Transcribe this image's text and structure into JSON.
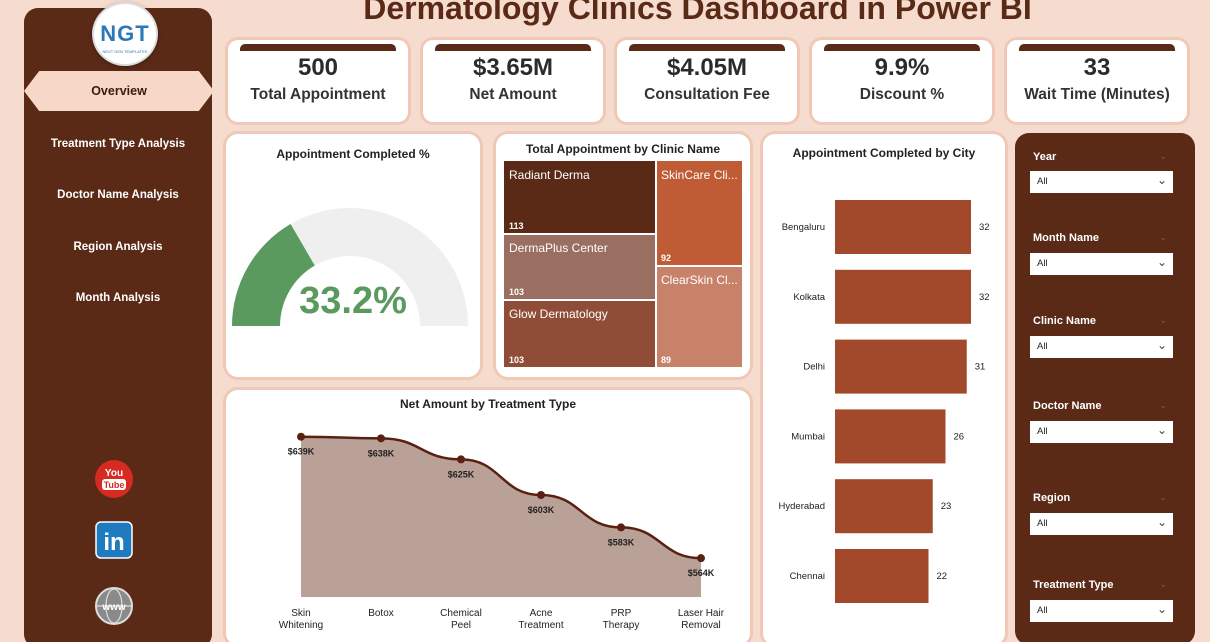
{
  "header": {
    "title": "Dermatology Clinics Dashboard in Power BI"
  },
  "logo": {
    "text": "NGT",
    "subtext": "NEXT GEN TEMPLATES"
  },
  "sidebar": {
    "active": "Overview",
    "items": [
      "Treatment Type Analysis",
      "Doctor Name Analysis",
      "Region Analysis",
      "Month Analysis"
    ],
    "social": {
      "youtube_top": "You",
      "youtube_bottom": "Tube",
      "linkedin": "in",
      "web": "www"
    }
  },
  "kpis": [
    {
      "value": "500",
      "label": "Total Appointment"
    },
    {
      "value": "$3.65M",
      "label": "Net Amount"
    },
    {
      "value": "$4.05M",
      "label": "Consultation Fee"
    },
    {
      "value": "9.9%",
      "label": "Discount %"
    },
    {
      "value": "33",
      "label": "Wait Time (Minutes)"
    }
  ],
  "gauge": {
    "title": "Appointment Completed %",
    "value_label": "33.2%",
    "value": 33.2,
    "max": 100,
    "color": "#5a9a5e"
  },
  "treemap": {
    "title": "Total Appointment by Clinic Name",
    "items": [
      {
        "name": "Radiant Derma",
        "value": 113,
        "label": "113"
      },
      {
        "name": "SkinCare Cli...",
        "value": 92,
        "label": "92"
      },
      {
        "name": "DermaPlus Center",
        "value": 103,
        "label": "103"
      },
      {
        "name": "ClearSkin Cl...",
        "value": 89,
        "label": "89"
      },
      {
        "name": "Glow Dermatology",
        "value": 103,
        "label": "103"
      }
    ]
  },
  "chart_data": [
    {
      "type": "area",
      "title": "Net Amount by Treatment Type",
      "categories": [
        "Skin Whitening",
        "Botox",
        "Chemical Peel",
        "Acne Treatment",
        "PRP Therapy",
        "Laser Hair Removal"
      ],
      "values": [
        639,
        638,
        625,
        603,
        583,
        564
      ],
      "data_labels": [
        "$639K",
        "$638K",
        "$625K",
        "$603K",
        "$583K",
        "$564K"
      ],
      "ylim": [
        540,
        645
      ]
    },
    {
      "type": "bar",
      "orientation": "horizontal",
      "title": "Appointment Completed by City",
      "categories": [
        "Bengaluru",
        "Kolkata",
        "Delhi",
        "Mumbai",
        "Hyderabad",
        "Chennai"
      ],
      "values": [
        32,
        32,
        31,
        26,
        23,
        22
      ],
      "xlim": [
        0,
        32
      ]
    }
  ],
  "filters": [
    {
      "label": "Year",
      "value": "All"
    },
    {
      "label": "Month Name",
      "value": "All"
    },
    {
      "label": "Clinic Name",
      "value": "All"
    },
    {
      "label": "Doctor Name",
      "value": "All"
    },
    {
      "label": "Region",
      "value": "All"
    },
    {
      "label": "Treatment Type",
      "value": "All"
    }
  ],
  "colors": {
    "brown": "#5a2a17",
    "bar": "#a2492b",
    "area": "#b9a197",
    "line": "#5a2112"
  }
}
